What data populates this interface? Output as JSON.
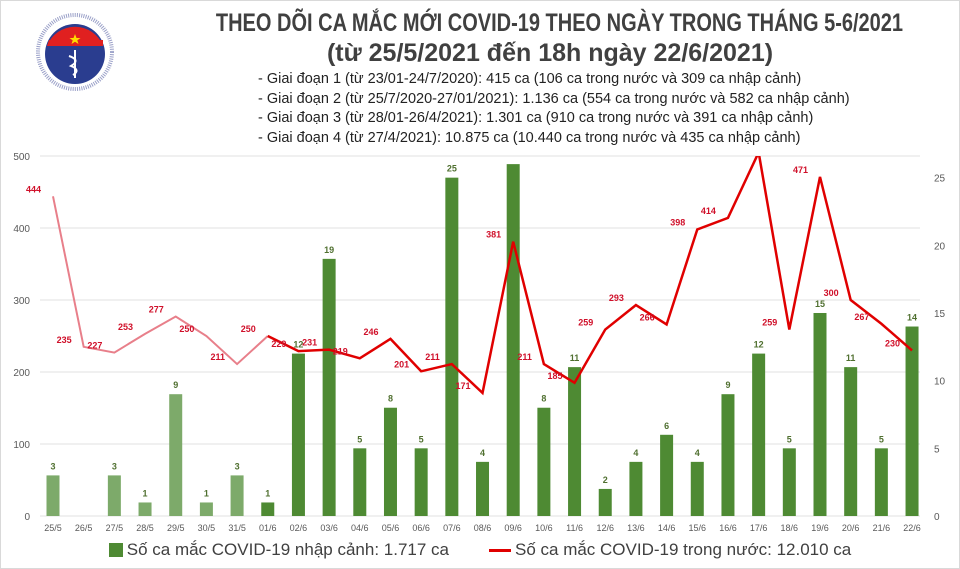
{
  "logo": {
    "text_top": "BỘ Y TẾ",
    "text_bottom": "MINISTRY OF HEALTH"
  },
  "header": {
    "title": "THEO DÕI CA MẮC MỚI COVID-19 THEO NGÀY TRONG THÁNG 5-6/2021",
    "subtitle": "(từ 25/5/2021 đến 18h ngày 22/6/2021)",
    "phases": [
      "- Giai đoạn 1 (từ 23/01-24/7/2020): 415 ca (106 ca trong nước và 309 ca nhập cảnh)",
      "- Giai đoạn 2 (từ 25/7/2020-27/01/2021): 1.136 ca (554 ca trong nước và 582 ca nhập cảnh)",
      "- Giai đoạn 3 (từ 28/01-26/4/2021): 1.301 ca (910 ca trong nước và 391 ca nhập cảnh)",
      "- Giai đoạn 4 (từ 27/4/2021): 10.875 ca (10.440 ca trong nước và 435 ca nhập cảnh)"
    ]
  },
  "chart_data": {
    "type": "bar+line",
    "categories": [
      "25/5",
      "26/5",
      "27/5",
      "28/5",
      "29/5",
      "30/5",
      "31/5",
      "01/6",
      "02/6",
      "03/6",
      "04/6",
      "05/6",
      "06/6",
      "07/6",
      "08/6",
      "09/6",
      "10/6",
      "11/6",
      "12/6",
      "13/6",
      "14/6",
      "15/6",
      "16/6",
      "17/6",
      "18/6",
      "19/6",
      "20/6",
      "21/6",
      "22/6"
    ],
    "series": [
      {
        "name": "Số ca mắc COVID-19 nhập cảnh: 1.717 ca",
        "type": "bar",
        "axis": "right",
        "color": "#4e8a33",
        "color_early": "#7daa6a",
        "values": [
          3,
          0,
          3,
          1,
          9,
          1,
          3,
          1,
          12,
          19,
          5,
          8,
          5,
          25,
          4,
          26,
          8,
          11,
          2,
          4,
          6,
          4,
          9,
          12,
          5,
          15,
          11,
          5,
          14
        ],
        "labels": [
          "3",
          "",
          "3",
          "1",
          "9",
          "1",
          "3",
          "1",
          "12",
          "19",
          "5",
          "8",
          "5",
          "25",
          "4",
          "",
          "8",
          "11",
          "2",
          "4",
          "6",
          "4",
          "9",
          "12",
          "5",
          "15",
          "11",
          "5",
          "14"
        ]
      },
      {
        "name": "Số ca mắc COVID-19 trong nước: 12.010 ca",
        "type": "line",
        "axis": "left",
        "color": "#e00000",
        "color_early": "#e87f8a",
        "values": [
          444,
          235,
          227,
          253,
          277,
          250,
          211,
          250,
          229,
          231,
          219,
          246,
          201,
          211,
          171,
          381,
          211,
          185,
          259,
          293,
          266,
          398,
          414,
          505,
          259,
          471,
          300,
          267,
          230
        ],
        "labels": [
          "444",
          "235",
          "227",
          "253",
          "277",
          "250",
          "211",
          "250",
          "229",
          "231",
          "219",
          "246",
          "201",
          "211",
          "171",
          "381",
          "211",
          "185",
          "259",
          "293",
          "266",
          "398",
          "414",
          "",
          "259",
          "471",
          "300",
          "267",
          "230"
        ]
      }
    ],
    "y_left": {
      "range": [
        0,
        500
      ],
      "ticks": [
        "0",
        "100",
        "200",
        "300",
        "400",
        "500"
      ]
    },
    "y_right": {
      "range": [
        0,
        26.6
      ],
      "ticks": [
        "0",
        "5",
        "10",
        "15",
        "20",
        "25"
      ]
    },
    "grid": true,
    "legend_position": "bottom"
  }
}
